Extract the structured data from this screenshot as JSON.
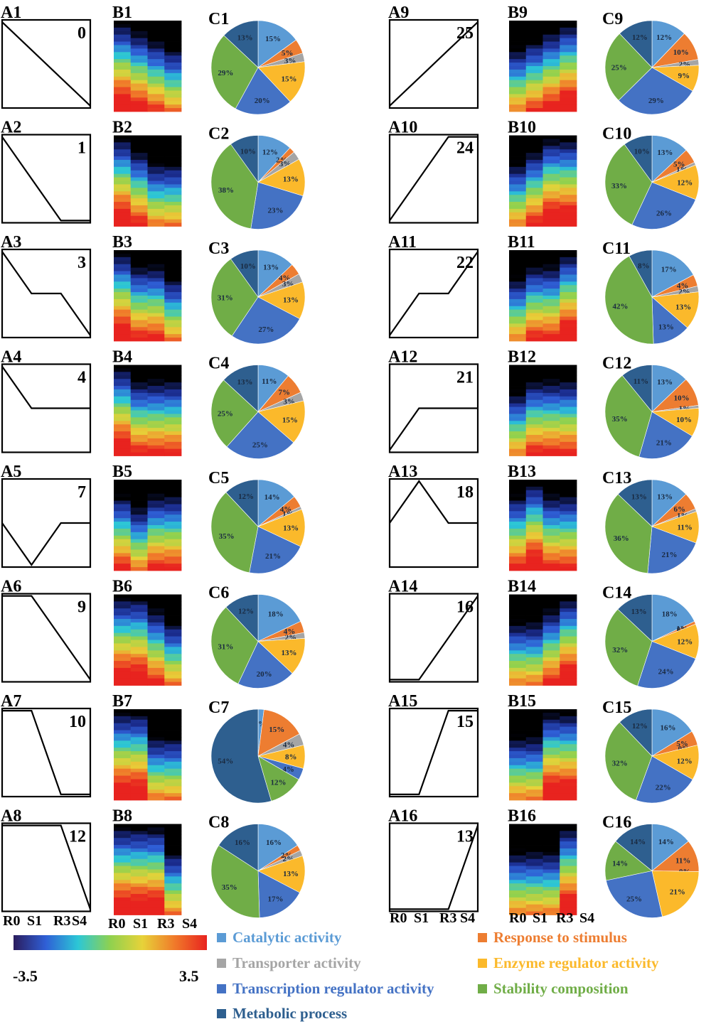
{
  "category_colors": {
    "catalytic": "#5b9bd5",
    "response": "#ed7d31",
    "transporter": "#a5a5a5",
    "enzyme": "#fbb92b",
    "transcription": "#4472c4",
    "stability": "#70ad47",
    "metabolic": "#2e5f8f"
  },
  "legend": {
    "items": [
      {
        "key": "catalytic",
        "label": "Catalytic activity"
      },
      {
        "key": "response",
        "label": "Response to stimulus"
      },
      {
        "key": "transporter",
        "label": "Transporter activity"
      },
      {
        "key": "enzyme",
        "label": "Enzyme regulator activity"
      },
      {
        "key": "transcription",
        "label": "Transcription regulator activity"
      },
      {
        "key": "stability",
        "label": "Stability composition"
      },
      {
        "key": "metabolic",
        "label": "Metabolic process"
      }
    ]
  },
  "colorbar": {
    "min_label": "-3.5",
    "max_label": "3.5",
    "min": -3.5,
    "max": 3.5,
    "colors": [
      "#2b1d5e",
      "#2f5fd6",
      "#2cc7d6",
      "#8fd14f",
      "#e7d239",
      "#f07a2a",
      "#e8231f"
    ]
  },
  "x_tick_labels": [
    "R0",
    "S1",
    "R3",
    "S4"
  ],
  "chart_data": {
    "type": "pie",
    "description_keys": [
      "catalytic",
      "response",
      "transporter",
      "enzyme",
      "transcription",
      "stability",
      "metabolic"
    ],
    "panels": [
      {
        "a_label": "A1",
        "b_label": "B1",
        "c_label": "C1",
        "profile_id": "0",
        "profile": [
          1,
          0.667,
          0.333,
          0
        ],
        "pie": [
          15,
          5,
          3,
          15,
          20,
          29,
          13
        ]
      },
      {
        "a_label": "A2",
        "b_label": "B2",
        "c_label": "C2",
        "profile_id": "1",
        "profile": [
          1,
          0.5,
          0,
          0
        ],
        "pie": [
          12,
          2,
          3,
          13,
          23,
          38,
          10
        ]
      },
      {
        "a_label": "A3",
        "b_label": "B3",
        "c_label": "C3",
        "profile_id": "3",
        "profile": [
          1,
          0.5,
          0.5,
          0
        ],
        "pie": [
          13,
          4,
          3,
          13,
          27,
          31,
          10
        ]
      },
      {
        "a_label": "A4",
        "b_label": "B4",
        "c_label": "C4",
        "profile_id": "4",
        "profile": [
          1,
          0.5,
          0.5,
          0.5
        ],
        "pie": [
          11,
          7,
          3,
          15,
          25,
          25,
          13
        ]
      },
      {
        "a_label": "A5",
        "b_label": "B5",
        "c_label": "C5",
        "profile_id": "7",
        "profile": [
          0.5,
          0,
          0.5,
          0.5
        ],
        "pie": [
          14,
          4,
          1,
          13,
          21,
          35,
          12
        ]
      },
      {
        "a_label": "A6",
        "b_label": "B6",
        "c_label": "C6",
        "profile_id": "9",
        "profile": [
          1,
          1,
          0.5,
          0
        ],
        "pie": [
          18,
          4,
          2,
          13,
          20,
          31,
          12
        ]
      },
      {
        "a_label": "A7",
        "b_label": "B7",
        "c_label": "C7",
        "profile_id": "10",
        "profile": [
          1,
          1,
          0,
          0
        ],
        "pie": [
          2,
          15,
          4,
          8,
          4,
          12,
          54
        ]
      },
      {
        "a_label": "A8",
        "b_label": "B8",
        "c_label": "C8",
        "profile_id": "12",
        "profile": [
          1,
          1,
          1,
          0
        ],
        "pie": [
          16,
          2,
          2,
          13,
          17,
          35,
          16
        ]
      },
      {
        "a_label": "A9",
        "b_label": "B9",
        "c_label": "C9",
        "profile_id": "25",
        "profile": [
          0,
          0.333,
          0.667,
          1
        ],
        "pie": [
          12,
          10,
          2,
          9,
          29,
          25,
          12
        ]
      },
      {
        "a_label": "A10",
        "b_label": "B10",
        "c_label": "C10",
        "profile_id": "24",
        "profile": [
          0,
          0.5,
          1,
          1
        ],
        "pie": [
          13,
          5,
          1,
          12,
          26,
          33,
          10
        ]
      },
      {
        "a_label": "A11",
        "b_label": "B11",
        "c_label": "C11",
        "profile_id": "22",
        "profile": [
          0,
          0.5,
          0.5,
          1
        ],
        "pie": [
          17,
          4,
          2,
          13,
          13,
          42,
          8
        ]
      },
      {
        "a_label": "A12",
        "b_label": "B12",
        "c_label": "C12",
        "profile_id": "21",
        "profile": [
          0,
          0.5,
          0.5,
          0.5
        ],
        "pie": [
          13,
          10,
          1,
          10,
          21,
          35,
          11
        ]
      },
      {
        "a_label": "A13",
        "b_label": "B13",
        "c_label": "C13",
        "profile_id": "18",
        "profile": [
          0.5,
          1,
          0.5,
          0.5
        ],
        "pie": [
          13,
          6,
          1,
          11,
          21,
          36,
          13
        ]
      },
      {
        "a_label": "A14",
        "b_label": "B14",
        "c_label": "C14",
        "profile_id": "16",
        "profile": [
          0,
          0,
          0.5,
          1
        ],
        "pie": [
          18,
          1,
          0,
          12,
          24,
          32,
          13
        ]
      },
      {
        "a_label": "A15",
        "b_label": "B15",
        "c_label": "C15",
        "profile_id": "15",
        "profile": [
          0,
          0,
          1,
          1
        ],
        "pie": [
          16,
          5,
          0,
          12,
          22,
          32,
          12
        ]
      },
      {
        "a_label": "A16",
        "b_label": "B16",
        "c_label": "C16",
        "profile_id": "13",
        "profile": [
          0,
          0,
          0,
          1
        ],
        "pie": [
          14,
          11,
          0,
          21,
          25,
          14,
          14
        ]
      }
    ]
  }
}
